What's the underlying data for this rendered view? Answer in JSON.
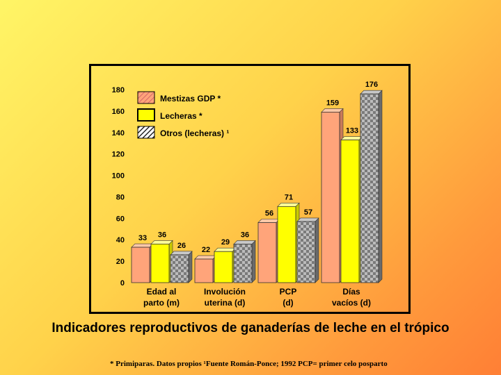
{
  "title": "Indicadores reproductivos de ganaderías de leche en el trópico",
  "footnote": "* Primiparas.  Datos propios  ¹Fuente Román-Ponce; 1992 PCP= primer celo posparto",
  "colors": {
    "series1": "#ffa47a",
    "series2": "#ffff00",
    "series3": "#9a9a9a"
  },
  "chart_data": {
    "type": "bar",
    "categories": [
      [
        "Edad al",
        "parto (m)"
      ],
      [
        "Involución",
        "uterina (d)"
      ],
      [
        "PCP",
        "(d)"
      ],
      [
        "Días",
        "vacíos (d)"
      ]
    ],
    "series": [
      {
        "name": "Mestizas GDP *",
        "values": [
          33,
          22,
          56,
          159
        ]
      },
      {
        "name": "Lecheras *",
        "values": [
          36,
          29,
          71,
          133
        ]
      },
      {
        "name": "Otros (lecheras) ¹",
        "values": [
          26,
          36,
          57,
          176
        ]
      }
    ],
    "ylim": [
      0,
      180
    ],
    "yticks": [
      0,
      20,
      40,
      60,
      80,
      100,
      120,
      140,
      160,
      180
    ],
    "grid": false,
    "legend": "top-left"
  }
}
